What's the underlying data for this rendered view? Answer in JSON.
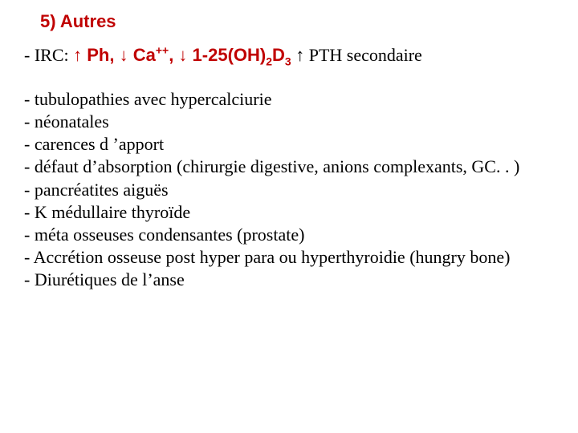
{
  "colors": {
    "accent": "#c00000",
    "text": "#000000",
    "background": "#ffffff"
  },
  "heading": "5) Autres",
  "irc": {
    "prefix": "- IRC: ",
    "part1_arrow": "↑",
    "part1_text": " Ph, ",
    "part2_arrow": "↓",
    "part2_text": " Ca",
    "part2_super": "++",
    "part2_after": ", ",
    "part3_arrow": "↓",
    "part3_text_a": " 1-25(OH)",
    "part3_sub1": "2",
    "part3_text_b": "D",
    "part3_sub2": "3",
    "gap": "    ",
    "pth_arrow": "↑",
    "pth_text": " PTH secondaire"
  },
  "items": [
    "- tubulopathies avec hypercalciurie",
    "- néonatales",
    "- carences d ’apport",
    "- défaut d’absorption (chirurgie digestive, anions complexants, GC. . )",
    "- pancréatites aiguës",
    "- K médullaire thyroïde",
    "- méta osseuses condensantes (prostate)",
    "- Accrétion osseuse post hyper para ou hyperthyroidie (hungry bone)",
    "- Diurétiques de l’anse"
  ]
}
